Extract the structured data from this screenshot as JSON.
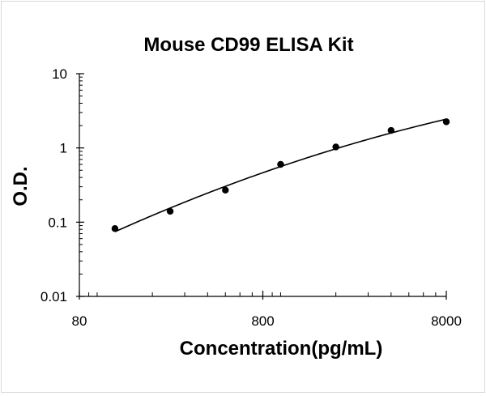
{
  "chart_data": {
    "type": "scatter",
    "title": "Mouse CD99  ELISA Kit",
    "xlabel": "Concentration(pg/mL)",
    "ylabel": "O.D.",
    "x_scale": "log",
    "y_scale": "log",
    "xlim": [
      80,
      8000
    ],
    "ylim": [
      0.01,
      10
    ],
    "x_ticks": [
      80,
      800,
      8000
    ],
    "x_tick_labels": [
      "80",
      "800",
      "8000"
    ],
    "y_ticks": [
      10,
      1,
      0.1,
      0.01
    ],
    "y_tick_labels": [
      "10",
      "1",
      "0.1",
      "0.01"
    ],
    "grid": false,
    "legend": "none",
    "series": [
      {
        "values": [
          {
            "x": 125,
            "y": 0.082
          },
          {
            "x": 250,
            "y": 0.14
          },
          {
            "x": 500,
            "y": 0.27
          },
          {
            "x": 1000,
            "y": 0.6
          },
          {
            "x": 2000,
            "y": 1.03
          },
          {
            "x": 4000,
            "y": 1.72
          },
          {
            "x": 8000,
            "y": 2.25
          }
        ],
        "fit": "4-parameter logistic curve"
      }
    ],
    "colors": {
      "points": "#000000",
      "curve": "#000000",
      "axes": "#000000"
    }
  }
}
